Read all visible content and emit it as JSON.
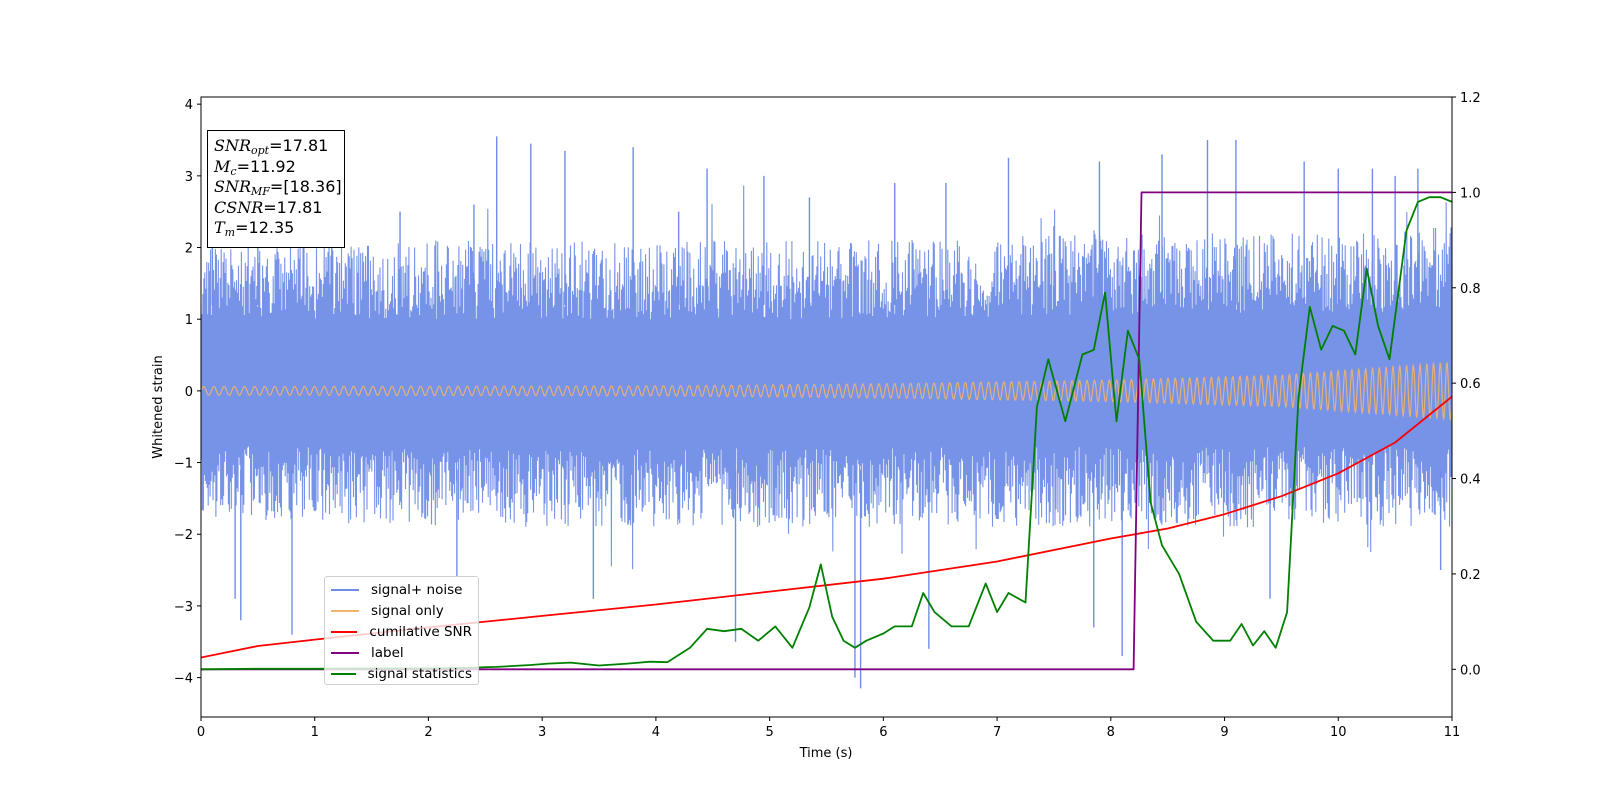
{
  "chart_data": {
    "type": "line",
    "xlabel": "Time (s)",
    "ylabel": "Whitened strain",
    "xlim": [
      0,
      11
    ],
    "ylim_left": [
      -4.55,
      4.1
    ],
    "ylim_right": [
      -0.1,
      1.2
    ],
    "xticks": [
      "0",
      "1",
      "2",
      "3",
      "4",
      "5",
      "6",
      "7",
      "8",
      "9",
      "10",
      "11"
    ],
    "yticks_left": [
      "4",
      "3",
      "2",
      "1",
      "0",
      "−1",
      "−2",
      "−3",
      "−4"
    ],
    "yticks_right": [
      "1.2",
      "1.0",
      "0.8",
      "0.6",
      "0.4",
      "0.2",
      "0.0"
    ],
    "info_box": {
      "snr_opt": "=17.81",
      "mc": "=11.92",
      "snr_mf": "=[18.36]",
      "csnr": "=17.81",
      "tm": "=12.35"
    },
    "series": [
      {
        "name": "signal+ noise",
        "axis": "left",
        "color": "#6f8de6",
        "note_style": "dense noise band",
        "envelope_upper": [
          [
            0,
            2.0
          ],
          [
            2,
            2.1
          ],
          [
            4,
            2.1
          ],
          [
            6,
            2.1
          ],
          [
            8,
            2.2
          ],
          [
            10,
            2.2
          ],
          [
            11,
            2.3
          ]
        ],
        "envelope_lower": [
          [
            0,
            -1.8
          ],
          [
            2,
            -1.9
          ],
          [
            4,
            -1.9
          ],
          [
            6,
            -1.9
          ],
          [
            8,
            -1.9
          ],
          [
            10,
            -1.9
          ],
          [
            11,
            -1.9
          ]
        ],
        "spikes": [
          [
            0.1,
            2.4
          ],
          [
            0.3,
            -2.9
          ],
          [
            0.35,
            -3.2
          ],
          [
            0.5,
            2.3
          ],
          [
            0.8,
            -3.4
          ],
          [
            1.15,
            2.6
          ],
          [
            1.75,
            2.5
          ],
          [
            2.25,
            -2.6
          ],
          [
            2.4,
            2.6
          ],
          [
            2.6,
            3.55
          ],
          [
            2.9,
            3.45
          ],
          [
            3.2,
            3.35
          ],
          [
            3.45,
            -2.9
          ],
          [
            3.8,
            3.4
          ],
          [
            4.2,
            2.5
          ],
          [
            4.45,
            3.1
          ],
          [
            4.7,
            -3.5
          ],
          [
            4.95,
            3.0
          ],
          [
            5.35,
            2.7
          ],
          [
            5.8,
            -4.15
          ],
          [
            5.75,
            -4.0
          ],
          [
            6.1,
            2.9
          ],
          [
            6.4,
            -3.6
          ],
          [
            6.55,
            2.9
          ],
          [
            7.1,
            3.25
          ],
          [
            7.5,
            2.3
          ],
          [
            7.85,
            -3.3
          ],
          [
            7.9,
            3.2
          ],
          [
            8.1,
            -3.7
          ],
          [
            8.45,
            3.3
          ],
          [
            8.85,
            3.5
          ],
          [
            9.1,
            3.5
          ],
          [
            9.4,
            -2.9
          ],
          [
            9.7,
            3.2
          ],
          [
            10.0,
            3.1
          ],
          [
            10.3,
            3.1
          ],
          [
            10.5,
            3.0
          ],
          [
            10.7,
            3.1
          ],
          [
            10.9,
            -2.5
          ]
        ]
      },
      {
        "name": "signal only",
        "axis": "left",
        "color": "#f0b46e",
        "amplitude": [
          [
            0,
            0.06
          ],
          [
            4,
            0.07
          ],
          [
            6,
            0.1
          ],
          [
            8,
            0.15
          ],
          [
            9.5,
            0.22
          ],
          [
            11,
            0.4
          ]
        ],
        "cycles_per_second": [
          [
            0,
            11
          ],
          [
            11,
            17
          ]
        ]
      },
      {
        "name": "cumilative SNR",
        "axis": "left",
        "color": "#ff0000",
        "points": [
          [
            0,
            -3.72
          ],
          [
            0.5,
            -3.56
          ],
          [
            1,
            -3.47
          ],
          [
            2,
            -3.3
          ],
          [
            3,
            -3.14
          ],
          [
            4,
            -2.98
          ],
          [
            5,
            -2.8
          ],
          [
            6,
            -2.62
          ],
          [
            7,
            -2.38
          ],
          [
            8,
            -2.06
          ],
          [
            8.5,
            -1.92
          ],
          [
            9,
            -1.72
          ],
          [
            9.5,
            -1.47
          ],
          [
            10,
            -1.15
          ],
          [
            10.5,
            -0.72
          ],
          [
            11,
            -0.08
          ]
        ]
      },
      {
        "name": "label",
        "axis": "right",
        "color": "#800080",
        "points": [
          [
            0,
            0.0
          ],
          [
            8.2,
            0.0
          ],
          [
            8.27,
            1.0
          ],
          [
            11,
            1.0
          ]
        ]
      },
      {
        "name": "signal statistics",
        "axis": "right",
        "color": "#008000",
        "points": [
          [
            0,
            0.0
          ],
          [
            0.5,
            0.001
          ],
          [
            1,
            0.001
          ],
          [
            1.5,
            0.002
          ],
          [
            2,
            0.002
          ],
          [
            2.3,
            0.003
          ],
          [
            2.6,
            0.005
          ],
          [
            2.9,
            0.009
          ],
          [
            3.05,
            0.012
          ],
          [
            3.25,
            0.014
          ],
          [
            3.5,
            0.008
          ],
          [
            3.75,
            0.012
          ],
          [
            3.95,
            0.016
          ],
          [
            4.1,
            0.015
          ],
          [
            4.3,
            0.045
          ],
          [
            4.45,
            0.085
          ],
          [
            4.6,
            0.08
          ],
          [
            4.75,
            0.085
          ],
          [
            4.9,
            0.06
          ],
          [
            5.05,
            0.09
          ],
          [
            5.2,
            0.045
          ],
          [
            5.35,
            0.13
          ],
          [
            5.45,
            0.22
          ],
          [
            5.55,
            0.11
          ],
          [
            5.65,
            0.06
          ],
          [
            5.75,
            0.045
          ],
          [
            5.85,
            0.06
          ],
          [
            6.0,
            0.075
          ],
          [
            6.1,
            0.09
          ],
          [
            6.25,
            0.09
          ],
          [
            6.35,
            0.16
          ],
          [
            6.45,
            0.12
          ],
          [
            6.6,
            0.09
          ],
          [
            6.75,
            0.09
          ],
          [
            6.9,
            0.18
          ],
          [
            7.0,
            0.12
          ],
          [
            7.1,
            0.16
          ],
          [
            7.25,
            0.14
          ],
          [
            7.35,
            0.55
          ],
          [
            7.45,
            0.65
          ],
          [
            7.6,
            0.52
          ],
          [
            7.75,
            0.66
          ],
          [
            7.85,
            0.67
          ],
          [
            7.95,
            0.79
          ],
          [
            8.05,
            0.52
          ],
          [
            8.15,
            0.71
          ],
          [
            8.25,
            0.65
          ],
          [
            8.35,
            0.35
          ],
          [
            8.45,
            0.26
          ],
          [
            8.6,
            0.2
          ],
          [
            8.75,
            0.1
          ],
          [
            8.9,
            0.06
          ],
          [
            9.05,
            0.06
          ],
          [
            9.15,
            0.095
          ],
          [
            9.25,
            0.05
          ],
          [
            9.35,
            0.08
          ],
          [
            9.45,
            0.045
          ],
          [
            9.55,
            0.12
          ],
          [
            9.65,
            0.57
          ],
          [
            9.75,
            0.76
          ],
          [
            9.85,
            0.67
          ],
          [
            9.95,
            0.72
          ],
          [
            10.05,
            0.71
          ],
          [
            10.15,
            0.66
          ],
          [
            10.25,
            0.84
          ],
          [
            10.35,
            0.72
          ],
          [
            10.45,
            0.65
          ],
          [
            10.6,
            0.92
          ],
          [
            10.7,
            0.98
          ],
          [
            10.8,
            0.99
          ],
          [
            10.9,
            0.99
          ],
          [
            11,
            0.98
          ]
        ]
      }
    ]
  }
}
